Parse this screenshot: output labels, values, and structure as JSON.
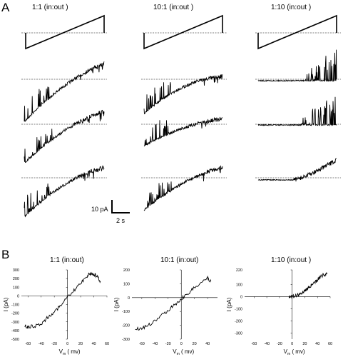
{
  "panel_a": {
    "letter": "A",
    "columns": [
      {
        "title": "1:1  (in:out )"
      },
      {
        "title": "10:1  (in:out )"
      },
      {
        "title": "1:10  (in:out )"
      }
    ],
    "scale_bar": {
      "current": "10 pA",
      "time": "2 s"
    }
  },
  "panel_b": {
    "letter": "B",
    "ylabel": "I (pA)",
    "xlabel": "V",
    "xlabel_sub": "m",
    "xlabel_unit": "( mv)",
    "x_ticks": [
      "-60",
      "-40",
      "-20",
      "0",
      "20",
      "40",
      "60"
    ]
  },
  "chart_data": [
    {
      "type": "line",
      "title": "1:1  (in:out)",
      "xlabel": "Vm (mv)",
      "ylabel": "I (pA)",
      "xlim": [
        -70,
        60
      ],
      "ylim": [
        -500,
        300
      ],
      "y_ticks": [
        300,
        200,
        100,
        0,
        -100,
        -200,
        -300,
        -400,
        -500
      ],
      "x": [
        -65,
        -60,
        -50,
        -40,
        -30,
        -20,
        -10,
        0,
        10,
        20,
        30,
        35,
        40,
        45,
        50
      ],
      "y": [
        -340,
        -360,
        -350,
        -320,
        -250,
        -180,
        -110,
        -20,
        60,
        150,
        230,
        260,
        250,
        220,
        170
      ]
    },
    {
      "type": "line",
      "title": "10:1  (in:out)",
      "xlabel": "Vm (mv)",
      "ylabel": "I (pA)",
      "xlim": [
        -75,
        55
      ],
      "ylim": [
        -300,
        200
      ],
      "y_ticks": [
        200,
        100,
        0,
        -100,
        -200,
        -300
      ],
      "x": [
        -70,
        -60,
        -50,
        -40,
        -30,
        -20,
        -10,
        0,
        10,
        20,
        30,
        40,
        45
      ],
      "y": [
        -230,
        -220,
        -200,
        -170,
        -130,
        -90,
        -50,
        -10,
        30,
        70,
        110,
        140,
        120
      ]
    },
    {
      "type": "line",
      "title": "1:10  (in:out )",
      "xlabel": "Vm (mv)",
      "ylabel": "I (pA)",
      "xlim": [
        -75,
        60
      ],
      "ylim": [
        -350,
        220
      ],
      "y_ticks": [
        220,
        100,
        0,
        -100,
        -200,
        -300
      ],
      "x": [
        -5,
        0,
        5,
        10,
        15,
        20,
        25,
        30,
        35,
        40,
        45,
        50,
        55
      ],
      "y": [
        0,
        0,
        5,
        15,
        30,
        50,
        70,
        90,
        110,
        140,
        165,
        180,
        185
      ]
    }
  ]
}
